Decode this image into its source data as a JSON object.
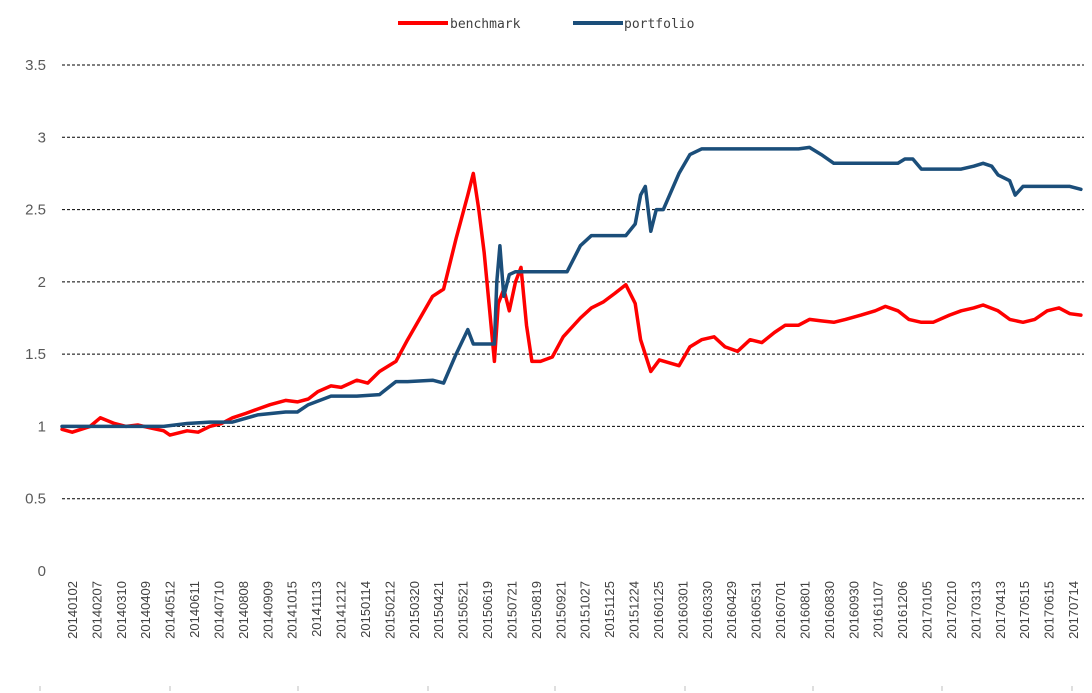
{
  "chart_data": {
    "type": "line",
    "title": "",
    "xlabel": "",
    "ylabel": "",
    "ylim": [
      0,
      3.5
    ],
    "yticks": [
      "0",
      "0.5",
      "1",
      "1.5",
      "2",
      "2.5",
      "3",
      "3.5"
    ],
    "grid": "horizontal dashed",
    "legend_position": "top-center",
    "x_tick_labels": [
      "20140102",
      "20140207",
      "20140310",
      "20140409",
      "20140512",
      "20140611",
      "20140710",
      "20140808",
      "20140909",
      "20141015",
      "20141113",
      "20141212",
      "20150114",
      "20150212",
      "20150320",
      "20150421",
      "20150521",
      "20150619",
      "20150721",
      "20150819",
      "20150921",
      "20151027",
      "20151125",
      "20151224",
      "20160125",
      "20160301",
      "20160330",
      "20160429",
      "20160531",
      "20160701",
      "20160801",
      "20160830",
      "20160930",
      "20161107",
      "20161206",
      "20170105",
      "20170210",
      "20170313",
      "20170413",
      "20170515",
      "20170615",
      "20170714"
    ],
    "series": [
      {
        "name": "benchmark",
        "color": "#ff0000",
        "points": [
          [
            "20140102",
            0.98
          ],
          [
            "20140115",
            0.96
          ],
          [
            "20140207",
            1.0
          ],
          [
            "20140220",
            1.06
          ],
          [
            "20140310",
            1.02
          ],
          [
            "20140325",
            1.0
          ],
          [
            "20140409",
            1.01
          ],
          [
            "20140425",
            0.99
          ],
          [
            "20140512",
            0.97
          ],
          [
            "20140520",
            0.94
          ],
          [
            "20140611",
            0.97
          ],
          [
            "20140625",
            0.96
          ],
          [
            "20140710",
            1.0
          ],
          [
            "20140725",
            1.02
          ],
          [
            "20140808",
            1.06
          ],
          [
            "20140825",
            1.09
          ],
          [
            "20140909",
            1.12
          ],
          [
            "20140925",
            1.15
          ],
          [
            "20141015",
            1.18
          ],
          [
            "20141030",
            1.17
          ],
          [
            "20141113",
            1.19
          ],
          [
            "20141125",
            1.24
          ],
          [
            "20141212",
            1.28
          ],
          [
            "20141225",
            1.27
          ],
          [
            "20150114",
            1.32
          ],
          [
            "20150128",
            1.3
          ],
          [
            "20150212",
            1.38
          ],
          [
            "20150305",
            1.45
          ],
          [
            "20150320",
            1.6
          ],
          [
            "20150405",
            1.75
          ],
          [
            "20150421",
            1.9
          ],
          [
            "20150505",
            1.95
          ],
          [
            "20150521",
            2.3
          ],
          [
            "20150605",
            2.6
          ],
          [
            "20150612",
            2.75
          ],
          [
            "20150619",
            2.5
          ],
          [
            "20150626",
            2.2
          ],
          [
            "20150703",
            1.8
          ],
          [
            "20150709",
            1.45
          ],
          [
            "20150714",
            1.85
          ],
          [
            "20150721",
            1.95
          ],
          [
            "20150728",
            1.8
          ],
          [
            "20150805",
            2.0
          ],
          [
            "20150812",
            2.1
          ],
          [
            "20150819",
            1.7
          ],
          [
            "20150826",
            1.45
          ],
          [
            "20150906",
            1.45
          ],
          [
            "20150921",
            1.48
          ],
          [
            "20151005",
            1.62
          ],
          [
            "20151027",
            1.75
          ],
          [
            "20151110",
            1.82
          ],
          [
            "20151125",
            1.86
          ],
          [
            "20151210",
            1.92
          ],
          [
            "20151224",
            1.98
          ],
          [
            "20160105",
            1.85
          ],
          [
            "20160112",
            1.6
          ],
          [
            "20160125",
            1.38
          ],
          [
            "20160205",
            1.46
          ],
          [
            "20160301",
            1.42
          ],
          [
            "20160315",
            1.55
          ],
          [
            "20160330",
            1.6
          ],
          [
            "20160415",
            1.62
          ],
          [
            "20160429",
            1.55
          ],
          [
            "20160515",
            1.52
          ],
          [
            "20160531",
            1.6
          ],
          [
            "20160615",
            1.58
          ],
          [
            "20160701",
            1.65
          ],
          [
            "20160715",
            1.7
          ],
          [
            "20160801",
            1.7
          ],
          [
            "20160815",
            1.74
          ],
          [
            "20160830",
            1.73
          ],
          [
            "20160915",
            1.72
          ],
          [
            "20160930",
            1.74
          ],
          [
            "20161020",
            1.77
          ],
          [
            "20161107",
            1.8
          ],
          [
            "20161120",
            1.83
          ],
          [
            "20161206",
            1.8
          ],
          [
            "20161220",
            1.74
          ],
          [
            "20170105",
            1.72
          ],
          [
            "20170120",
            1.72
          ],
          [
            "20170210",
            1.77
          ],
          [
            "20170225",
            1.8
          ],
          [
            "20170313",
            1.82
          ],
          [
            "20170325",
            1.84
          ],
          [
            "20170413",
            1.8
          ],
          [
            "20170428",
            1.74
          ],
          [
            "20170515",
            1.72
          ],
          [
            "20170530",
            1.74
          ],
          [
            "20170615",
            1.8
          ],
          [
            "20170630",
            1.82
          ],
          [
            "20170714",
            1.78
          ],
          [
            "20170728",
            1.77
          ]
        ]
      },
      {
        "name": "portfolio",
        "color": "#1b4e7a",
        "points": [
          [
            "20140102",
            1.0
          ],
          [
            "20140207",
            1.0
          ],
          [
            "20140409",
            1.0
          ],
          [
            "20140512",
            1.0
          ],
          [
            "20140611",
            1.02
          ],
          [
            "20140710",
            1.03
          ],
          [
            "20140808",
            1.03
          ],
          [
            "20140909",
            1.08
          ],
          [
            "20141015",
            1.1
          ],
          [
            "20141030",
            1.1
          ],
          [
            "20141113",
            1.15
          ],
          [
            "20141212",
            1.21
          ],
          [
            "20150114",
            1.21
          ],
          [
            "20150212",
            1.22
          ],
          [
            "20150305",
            1.31
          ],
          [
            "20150320",
            1.31
          ],
          [
            "20150421",
            1.32
          ],
          [
            "20150505",
            1.3
          ],
          [
            "20150521",
            1.5
          ],
          [
            "20150605",
            1.67
          ],
          [
            "20150612",
            1.57
          ],
          [
            "20150619",
            1.57
          ],
          [
            "20150703",
            1.57
          ],
          [
            "20150709",
            1.57
          ],
          [
            "20150712",
            2.0
          ],
          [
            "20150716",
            2.25
          ],
          [
            "20150721",
            1.9
          ],
          [
            "20150728",
            2.05
          ],
          [
            "20150805",
            2.07
          ],
          [
            "20150819",
            2.07
          ],
          [
            "20150921",
            2.07
          ],
          [
            "20151010",
            2.07
          ],
          [
            "20151027",
            2.25
          ],
          [
            "20151110",
            2.32
          ],
          [
            "20151125",
            2.32
          ],
          [
            "20151224",
            2.32
          ],
          [
            "20160105",
            2.4
          ],
          [
            "20160112",
            2.6
          ],
          [
            "20160118",
            2.66
          ],
          [
            "20160125",
            2.35
          ],
          [
            "20160201",
            2.5
          ],
          [
            "20160210",
            2.5
          ],
          [
            "20160301",
            2.75
          ],
          [
            "20160315",
            2.88
          ],
          [
            "20160330",
            2.92
          ],
          [
            "20160429",
            2.92
          ],
          [
            "20160531",
            2.92
          ],
          [
            "20160701",
            2.92
          ],
          [
            "20160801",
            2.92
          ],
          [
            "20160815",
            2.93
          ],
          [
            "20160830",
            2.88
          ],
          [
            "20160915",
            2.82
          ],
          [
            "20160930",
            2.82
          ],
          [
            "20161107",
            2.82
          ],
          [
            "20161206",
            2.82
          ],
          [
            "20161215",
            2.85
          ],
          [
            "20161225",
            2.85
          ],
          [
            "20170105",
            2.78
          ],
          [
            "20170210",
            2.78
          ],
          [
            "20170225",
            2.78
          ],
          [
            "20170313",
            2.8
          ],
          [
            "20170325",
            2.82
          ],
          [
            "20170405",
            2.8
          ],
          [
            "20170413",
            2.74
          ],
          [
            "20170428",
            2.7
          ],
          [
            "20170505",
            2.6
          ],
          [
            "20170515",
            2.66
          ],
          [
            "20170615",
            2.66
          ],
          [
            "20170630",
            2.66
          ],
          [
            "20170714",
            2.66
          ],
          [
            "20170728",
            2.64
          ]
        ]
      }
    ]
  }
}
